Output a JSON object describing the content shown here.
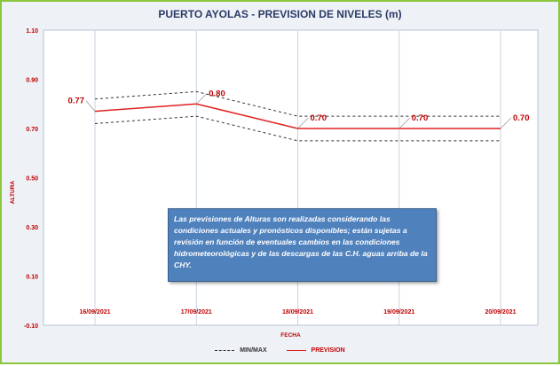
{
  "chart_data": {
    "type": "line",
    "title": "PUERTO AYOLAS - PREVISION DE NIVELES (m)",
    "xlabel": "FECHA",
    "ylabel": "ALTURA",
    "categories": [
      "16/09/2021",
      "17/09/2021",
      "18/09/2021",
      "19/09/2021",
      "20/09/2021"
    ],
    "ylim": [
      -0.1,
      1.1
    ],
    "yticks": [
      "-0.10",
      "0.10",
      "0.30",
      "0.50",
      "0.70",
      "0.90",
      "1.10"
    ],
    "series": [
      {
        "name": "PREVISION",
        "values": [
          0.77,
          0.8,
          0.7,
          0.7,
          0.7
        ],
        "labels": [
          "0.77",
          "0.80",
          "0.70",
          "0.70",
          "0.70"
        ],
        "color": "#e02020"
      },
      {
        "name": "MIN/MAX",
        "role": "max",
        "values": [
          0.82,
          0.85,
          0.75,
          0.75,
          0.75
        ],
        "color": "#333333"
      },
      {
        "name": "MIN/MAX",
        "role": "min",
        "values": [
          0.72,
          0.75,
          0.65,
          0.65,
          0.65
        ],
        "color": "#333333"
      }
    ],
    "grid": "vertical",
    "legend": "bottom",
    "legend_entries": [
      "MIN/MAX",
      "PREVISION"
    ],
    "annotation": "Las previsiones de Alturas son realizadas considerando las condiciones actuales y pronósticos disponibles;  están sujetas a revisión en función de eventuales cambios en las condiciones hidrometeorológicas y de las descargas de las C.H. aguas arriba de la CHY."
  },
  "colors": {
    "frame_border": "#8cc63f",
    "background": "#eef1f6",
    "plot_background": "#ffffff",
    "axis_text": "#c00000",
    "title_text": "#2b3a67",
    "note_background": "#4f81bd"
  }
}
